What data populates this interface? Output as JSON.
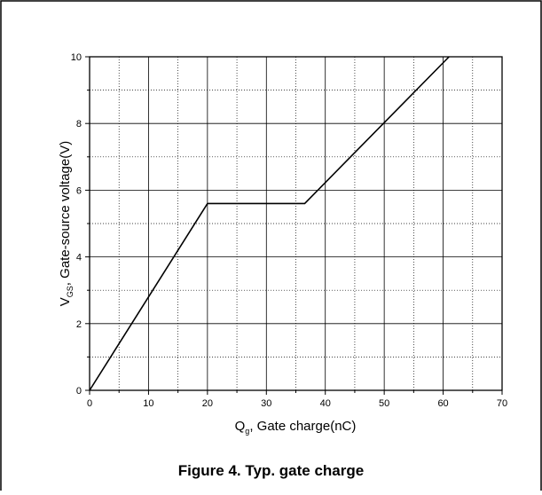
{
  "chart_data": {
    "type": "line",
    "series": [
      {
        "x": [
          0,
          20,
          36.5,
          61
        ],
        "y": [
          0,
          5.6,
          5.6,
          10
        ]
      }
    ],
    "xlabel": {
      "main": "Q",
      "subscript": "g",
      "rest": ", Gate charge(nC)"
    },
    "ylabel": {
      "main": "V",
      "subscript": "GS",
      "rest": ", Gate-source voltage(V)"
    },
    "xlim": [
      0,
      70
    ],
    "ylim": [
      0,
      10
    ],
    "x_ticks": [
      "0",
      "10",
      "20",
      "30",
      "40",
      "50",
      "60",
      "70"
    ],
    "y_ticks": [
      "0",
      "2",
      "4",
      "6",
      "8",
      "10"
    ],
    "grid": {
      "major": "solid",
      "minor": "dotted"
    }
  },
  "figure": {
    "caption": "Figure 4. Typ. gate charge"
  },
  "colors": {
    "line": "#000000",
    "grid": "#000000",
    "border": "#000000"
  }
}
